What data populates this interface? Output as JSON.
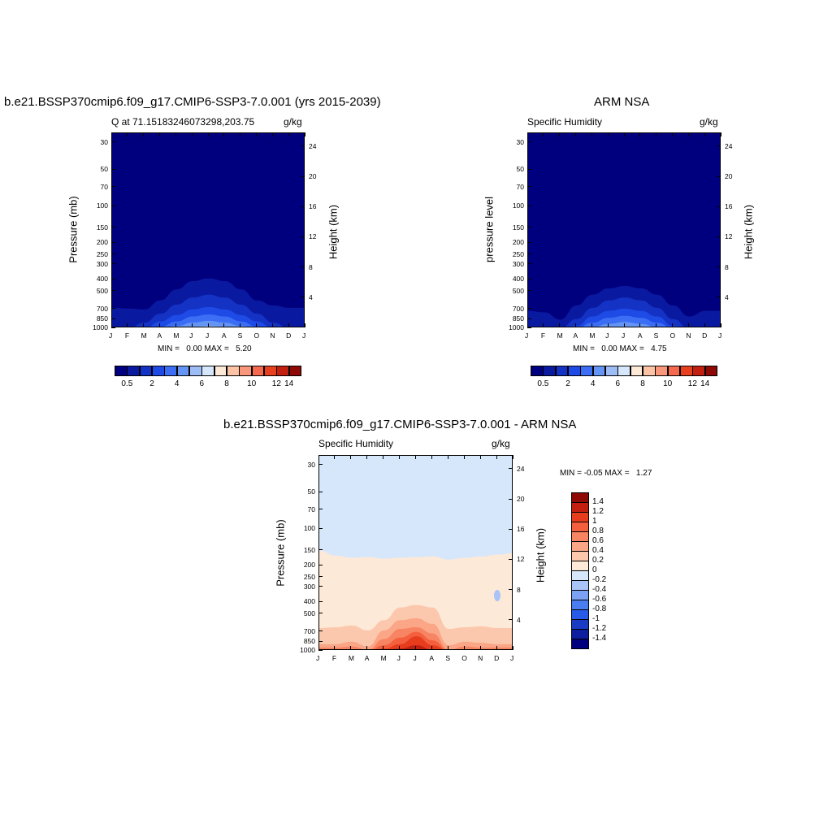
{
  "panels": {
    "model": {
      "figure_title": "b.e21.BSSP370cmip6.f09_g17.CMIP6-SSP3-7.0.001 (yrs 2015-2039)",
      "left_subtitle": "Q at 71.15183246073298,203.75",
      "right_subtitle": "g/kg",
      "ylabel_left": "Pressure (mb)",
      "ylabel_right": "Height (km)",
      "minmax": "MIN =   0.00 MAX =   5.20"
    },
    "obs": {
      "figure_title": "ARM NSA",
      "left_subtitle": "Specific Humidity",
      "right_subtitle": "g/kg",
      "ylabel_left": "pressure level",
      "ylabel_right": "Height (km)",
      "minmax": "MIN =   0.00 MAX =   4.75"
    },
    "diff": {
      "figure_title": "b.e21.BSSP370cmip6.f09_g17.CMIP6-SSP3-7.0.001 - ARM NSA",
      "left_subtitle": "Specific Humidity",
      "right_subtitle": "g/kg",
      "ylabel_left": "Pressure (mb)",
      "ylabel_right": "Height (km)",
      "minmax": "MIN = -0.05 MAX =   1.27"
    }
  },
  "axes": {
    "months": [
      "J",
      "F",
      "M",
      "A",
      "M",
      "J",
      "J",
      "A",
      "S",
      "O",
      "N",
      "D",
      "J"
    ],
    "pressure_ticks": [
      30,
      50,
      70,
      100,
      150,
      200,
      250,
      300,
      400,
      500,
      700,
      850,
      1000
    ],
    "height_ticks": [
      24,
      20,
      16,
      12,
      8,
      4
    ]
  },
  "colorbars": {
    "abs_colors": [
      "#00007f",
      "#0a1aa0",
      "#1432c4",
      "#1e4be6",
      "#3c6ef5",
      "#6495f5",
      "#9ebcf5",
      "#d6e7fb",
      "#fde9d8",
      "#fcc3a5",
      "#f9977a",
      "#f56a4e",
      "#e8401f",
      "#c31f10",
      "#8d0a06"
    ],
    "abs_labels": [
      "0.5",
      "2",
      "4",
      "6",
      "8",
      "10",
      "12",
      "14"
    ],
    "diff_colors": [
      "#00007f",
      "#0d1e9f",
      "#1a3cc4",
      "#285ae8",
      "#4a7ef0",
      "#7aa1f3",
      "#a9c4f6",
      "#d6e7fb",
      "#fde9d8",
      "#fcc8ad",
      "#faa687",
      "#f78462",
      "#f4603e",
      "#e73d1e",
      "#c31f10",
      "#8d0a06"
    ],
    "diff_labels": [
      "1.4",
      "1.2",
      "1",
      "0.8",
      "0.6",
      "0.4",
      "0.2",
      "0",
      "-0.2",
      "-0.4",
      "-0.6",
      "-0.8",
      "-1",
      "-1.2",
      "-1.4"
    ]
  },
  "chart_data": [
    {
      "type": "heatmap",
      "title": "b.e21.BSSP370cmip6.f09_g17.CMIP6-SSP3-7.0.001 (yrs 2015-2039)",
      "subtitle": "Q at 71.15183246073298,203.75",
      "units": "g/kg",
      "xlabel": "",
      "ylabel": "Pressure (mb)",
      "ylabel_right": "Height (km)",
      "y_scale": "log (pressure, inverted)",
      "ylim": [
        1000,
        25
      ],
      "contour_levels": [
        0.5,
        1,
        2,
        3,
        4,
        5,
        6,
        7,
        8,
        9,
        10,
        11,
        12,
        13,
        14
      ],
      "contour_top_pressure_by_month": {
        "x": [
          "J",
          "F",
          "M",
          "A",
          "M",
          "J",
          "J",
          "A",
          "S",
          "O",
          "N",
          "D",
          "J"
        ],
        "level_0.5": [
          680,
          690,
          700,
          590,
          480,
          410,
          390,
          410,
          480,
          590,
          650,
          680,
          680
        ],
        "level_1": [
          1000,
          1000,
          900,
          760,
          640,
          560,
          530,
          560,
          640,
          760,
          900,
          1000,
          1000
        ],
        "level_2": [
          1000,
          1000,
          1000,
          880,
          780,
          700,
          670,
          700,
          780,
          880,
          1000,
          1000,
          1000
        ],
        "level_3": [
          1000,
          1000,
          1000,
          970,
          880,
          800,
          770,
          800,
          880,
          970,
          1000,
          1000,
          1000
        ],
        "level_4": [
          1000,
          1000,
          1000,
          1000,
          960,
          900,
          870,
          900,
          960,
          1000,
          1000,
          1000,
          1000
        ],
        "level_5": [
          1000,
          1000,
          1000,
          1000,
          1000,
          970,
          960,
          970,
          1000,
          1000,
          1000,
          1000,
          1000
        ]
      },
      "min": 0.0,
      "max": 5.2
    },
    {
      "type": "heatmap",
      "title": "ARM NSA",
      "subtitle": "Specific Humidity",
      "units": "g/kg",
      "xlabel": "",
      "ylabel": "pressure level",
      "ylabel_right": "Height (km)",
      "y_scale": "log (pressure, inverted)",
      "ylim": [
        1000,
        25
      ],
      "contour_levels": [
        0.5,
        1,
        2,
        3,
        4,
        5,
        6,
        7,
        8,
        9,
        10,
        11,
        12,
        13,
        14
      ],
      "contour_top_pressure_by_month": {
        "x": [
          "J",
          "F",
          "M",
          "A",
          "M",
          "J",
          "J",
          "A",
          "S",
          "O",
          "N",
          "D",
          "J"
        ],
        "level_0.5": [
          720,
          740,
          850,
          650,
          530,
          470,
          450,
          470,
          530,
          650,
          800,
          720,
          720
        ],
        "level_1": [
          1000,
          1000,
          1000,
          840,
          680,
          590,
          560,
          590,
          680,
          840,
          1000,
          1000,
          1000
        ],
        "level_2": [
          1000,
          1000,
          1000,
          960,
          800,
          720,
          690,
          720,
          800,
          960,
          1000,
          1000,
          1000
        ],
        "level_3": [
          1000,
          1000,
          1000,
          1000,
          900,
          820,
          790,
          820,
          900,
          1000,
          1000,
          1000,
          1000
        ],
        "level_4": [
          1000,
          1000,
          1000,
          1000,
          980,
          920,
          890,
          920,
          980,
          1000,
          1000,
          1000,
          1000
        ],
        "level_5": [
          1000,
          1000,
          1000,
          1000,
          1000,
          990,
          980,
          990,
          1000,
          1000,
          1000,
          1000,
          1000
        ]
      },
      "min": 0.0,
      "max": 4.75
    },
    {
      "type": "heatmap",
      "title": "b.e21.BSSP370cmip6.f09_g17.CMIP6-SSP3-7.0.001 - ARM NSA",
      "subtitle": "Specific Humidity",
      "units": "g/kg",
      "xlabel": "",
      "ylabel": "Pressure (mb)",
      "ylabel_right": "Height (km)",
      "y_scale": "log (pressure, inverted)",
      "ylim": [
        1000,
        25
      ],
      "contour_levels": [
        -1.4,
        -1.2,
        -1,
        -0.8,
        -0.6,
        -0.4,
        -0.2,
        0,
        0.2,
        0.4,
        0.6,
        0.8,
        1,
        1.2,
        1.4
      ],
      "contour_top_pressure_by_month": {
        "x": [
          "J",
          "F",
          "M",
          "A",
          "M",
          "J",
          "J",
          "A",
          "S",
          "O",
          "N",
          "D",
          "J"
        ],
        "level_0": [
          150,
          165,
          172,
          170,
          175,
          172,
          170,
          168,
          178,
          172,
          168,
          162,
          158
        ],
        "level_0.2": [
          650,
          640,
          620,
          680,
          560,
          440,
          420,
          440,
          660,
          640,
          630,
          650,
          650
        ],
        "level_0.4": [
          880,
          880,
          840,
          920,
          680,
          560,
          540,
          600,
          900,
          840,
          860,
          880,
          880
        ],
        "level_0.6": [
          940,
          940,
          920,
          980,
          800,
          660,
          640,
          720,
          980,
          920,
          940,
          940,
          940
        ],
        "level_0.8": [
          1000,
          1000,
          1000,
          1000,
          900,
          780,
          700,
          820,
          1000,
          1000,
          980,
          1000,
          1000
        ],
        "level_1": [
          1000,
          1000,
          1000,
          1000,
          960,
          880,
          760,
          900,
          1000,
          1000,
          1000,
          1000,
          1000
        ],
        "level_1.2": [
          1000,
          1000,
          1000,
          1000,
          990,
          960,
          900,
          980,
          1000,
          1000,
          1000,
          1000,
          1000
        ]
      },
      "min": -0.05,
      "max": 1.27
    }
  ]
}
